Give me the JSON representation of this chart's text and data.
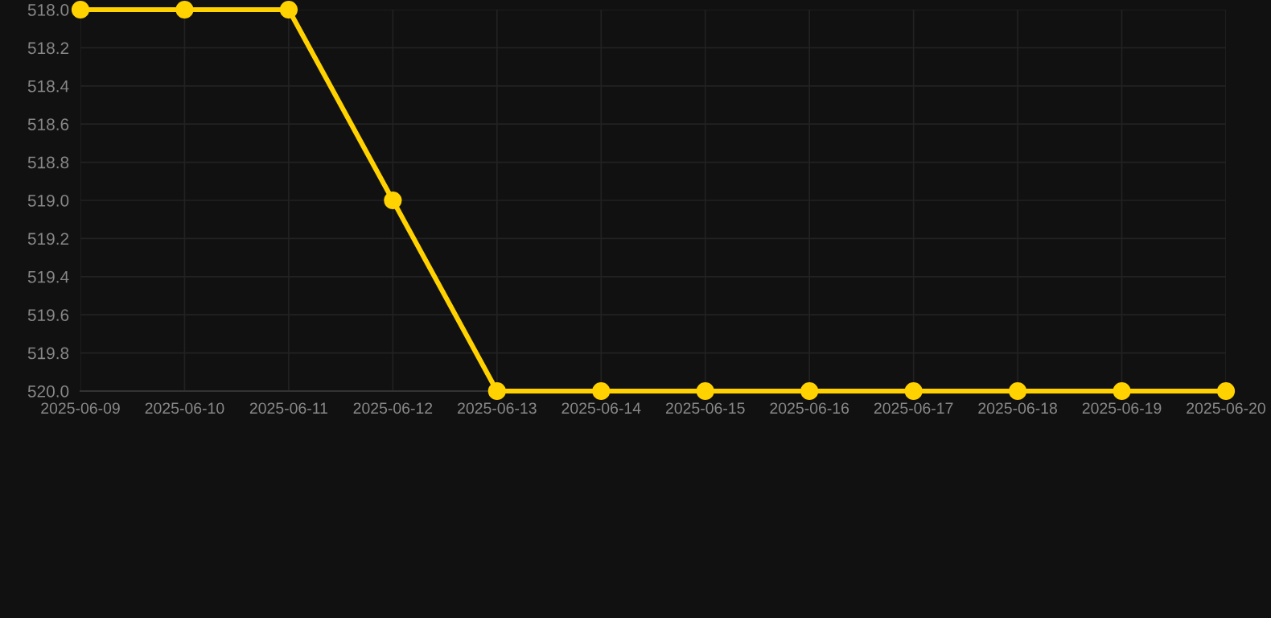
{
  "chart_data": {
    "type": "line",
    "x": [
      "2025-06-09",
      "2025-06-10",
      "2025-06-11",
      "2025-06-12",
      "2025-06-13",
      "2025-06-14",
      "2025-06-15",
      "2025-06-16",
      "2025-06-17",
      "2025-06-18",
      "2025-06-19",
      "2025-06-20"
    ],
    "series": [
      {
        "color": "#ffd200",
        "values": [
          518,
          518,
          518,
          519,
          520,
          520,
          520,
          520,
          520,
          520,
          520,
          520
        ]
      }
    ],
    "xlim": [
      "2025-06-09",
      "2025-06-20"
    ],
    "xticks": [
      "2025-06-09",
      "2025-06-10",
      "2025-06-11",
      "2025-06-12",
      "2025-06-13",
      "2025-06-14",
      "2025-06-15",
      "2025-06-16",
      "2025-06-17",
      "2025-06-18",
      "2025-06-19",
      "2025-06-20"
    ],
    "ylim": [
      520,
      518
    ],
    "yticks": [
      {
        "value": 518,
        "label": "518.0"
      },
      {
        "value": 518.2,
        "label": "518.2"
      },
      {
        "value": 518.4,
        "label": "518.4"
      },
      {
        "value": 518.6,
        "label": "518.6"
      },
      {
        "value": 518.8,
        "label": "518.8"
      },
      {
        "value": 519,
        "label": "519.0"
      },
      {
        "value": 519.2,
        "label": "519.2"
      },
      {
        "value": 519.4,
        "label": "519.4"
      },
      {
        "value": 519.6,
        "label": "519.6"
      },
      {
        "value": 519.8,
        "label": "519.8"
      },
      {
        "value": 520,
        "label": "520.0"
      }
    ],
    "grid": true,
    "marker": "circle",
    "line_style": "solid"
  }
}
